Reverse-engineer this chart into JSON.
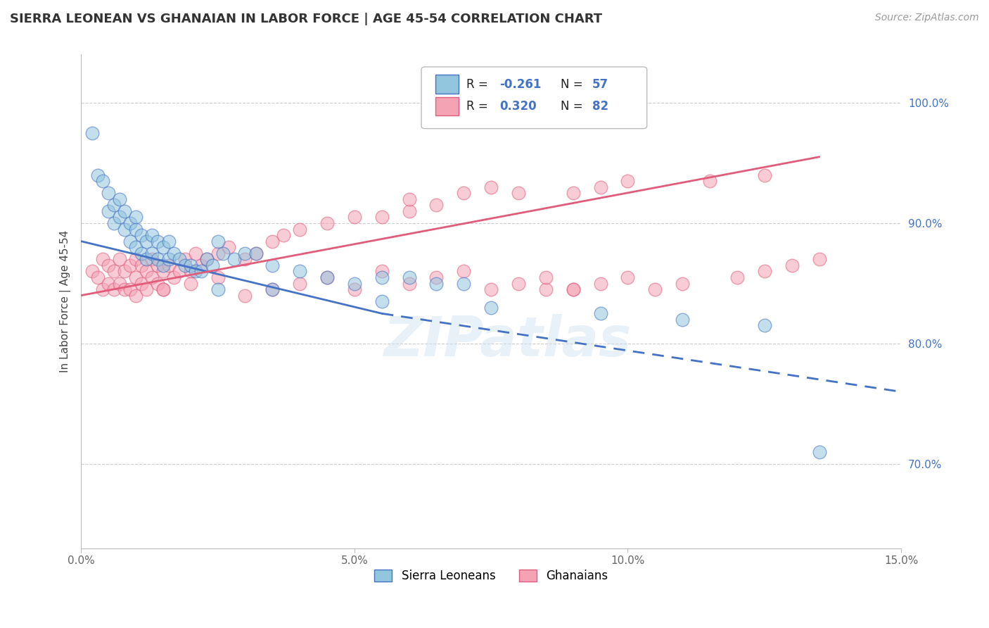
{
  "title": "SIERRA LEONEAN VS GHANAIAN IN LABOR FORCE | AGE 45-54 CORRELATION CHART",
  "source": "Source: ZipAtlas.com",
  "ylabel": "In Labor Force | Age 45-54",
  "xlim": [
    0.0,
    15.0
  ],
  "ylim": [
    63.0,
    104.0
  ],
  "xticklabels": [
    "0.0%",
    "5.0%",
    "10.0%",
    "15.0%"
  ],
  "xticks": [
    0.0,
    5.0,
    10.0,
    15.0
  ],
  "yticklabels": [
    "70.0%",
    "80.0%",
    "90.0%",
    "100.0%"
  ],
  "yticks": [
    70.0,
    80.0,
    90.0,
    100.0
  ],
  "color_blue": "#92c5de",
  "color_pink": "#f4a3b5",
  "color_blue_line": "#4472c4",
  "color_pink_line": "#e05c7a",
  "watermark": "ZIPatlas",
  "blue_line_x0": 0.0,
  "blue_line_y0": 88.5,
  "blue_line_x1": 5.5,
  "blue_line_y1": 82.5,
  "blue_dash_x0": 5.5,
  "blue_dash_y0": 82.5,
  "blue_dash_x1": 15.0,
  "blue_dash_y1": 76.0,
  "pink_line_x0": 0.0,
  "pink_line_y0": 84.0,
  "pink_line_x1": 13.5,
  "pink_line_y1": 95.5,
  "sierra_x": [
    0.2,
    0.3,
    0.4,
    0.5,
    0.5,
    0.6,
    0.6,
    0.7,
    0.7,
    0.8,
    0.8,
    0.9,
    0.9,
    1.0,
    1.0,
    1.0,
    1.1,
    1.1,
    1.2,
    1.2,
    1.3,
    1.3,
    1.4,
    1.4,
    1.5,
    1.5,
    1.6,
    1.6,
    1.7,
    1.8,
    1.9,
    2.0,
    2.1,
    2.2,
    2.3,
    2.4,
    2.5,
    2.6,
    2.8,
    3.0,
    3.2,
    3.5,
    4.0,
    4.5,
    5.0,
    5.5,
    6.0,
    6.5,
    7.0,
    2.5,
    3.5,
    5.5,
    7.5,
    9.5,
    11.0,
    12.5,
    13.5
  ],
  "sierra_y": [
    97.5,
    94.0,
    93.5,
    91.0,
    92.5,
    90.0,
    91.5,
    90.5,
    92.0,
    89.5,
    91.0,
    88.5,
    90.0,
    88.0,
    89.5,
    90.5,
    87.5,
    89.0,
    87.0,
    88.5,
    87.5,
    89.0,
    87.0,
    88.5,
    86.5,
    88.0,
    87.0,
    88.5,
    87.5,
    87.0,
    86.5,
    86.5,
    86.0,
    86.0,
    87.0,
    86.5,
    88.5,
    87.5,
    87.0,
    87.5,
    87.5,
    86.5,
    86.0,
    85.5,
    85.0,
    85.5,
    85.5,
    85.0,
    85.0,
    84.5,
    84.5,
    83.5,
    83.0,
    82.5,
    82.0,
    81.5,
    71.0
  ],
  "ghana_x": [
    0.2,
    0.3,
    0.4,
    0.4,
    0.5,
    0.5,
    0.6,
    0.6,
    0.7,
    0.7,
    0.8,
    0.8,
    0.9,
    0.9,
    1.0,
    1.0,
    1.0,
    1.1,
    1.1,
    1.2,
    1.2,
    1.3,
    1.3,
    1.4,
    1.4,
    1.5,
    1.5,
    1.6,
    1.7,
    1.8,
    1.9,
    2.0,
    2.1,
    2.2,
    2.3,
    2.5,
    2.7,
    3.0,
    3.2,
    3.5,
    3.7,
    4.0,
    4.5,
    5.0,
    5.5,
    6.0,
    6.0,
    6.5,
    7.0,
    7.5,
    8.0,
    8.5,
    9.0,
    9.0,
    9.5,
    10.0,
    11.5,
    12.5,
    1.5,
    2.0,
    2.5,
    3.0,
    3.5,
    4.0,
    4.5,
    5.0,
    5.5,
    6.0,
    6.5,
    7.0,
    7.5,
    8.0,
    8.5,
    9.0,
    9.5,
    10.0,
    10.5,
    11.0,
    12.0,
    12.5,
    13.0,
    13.5
  ],
  "ghana_y": [
    86.0,
    85.5,
    84.5,
    87.0,
    85.0,
    86.5,
    84.5,
    86.0,
    85.0,
    87.0,
    84.5,
    86.0,
    84.5,
    86.5,
    84.0,
    85.5,
    87.0,
    85.0,
    86.5,
    84.5,
    86.0,
    85.5,
    87.0,
    85.0,
    86.5,
    84.5,
    86.0,
    86.5,
    85.5,
    86.0,
    87.0,
    86.0,
    87.5,
    86.5,
    87.0,
    87.5,
    88.0,
    87.0,
    87.5,
    88.5,
    89.0,
    89.5,
    90.0,
    90.5,
    90.5,
    91.0,
    92.0,
    91.5,
    92.5,
    93.0,
    92.5,
    84.5,
    92.5,
    84.5,
    93.0,
    93.5,
    93.5,
    94.0,
    84.5,
    85.0,
    85.5,
    84.0,
    84.5,
    85.0,
    85.5,
    84.5,
    86.0,
    85.0,
    85.5,
    86.0,
    84.5,
    85.0,
    85.5,
    84.5,
    85.0,
    85.5,
    84.5,
    85.0,
    85.5,
    86.0,
    86.5,
    87.0
  ]
}
